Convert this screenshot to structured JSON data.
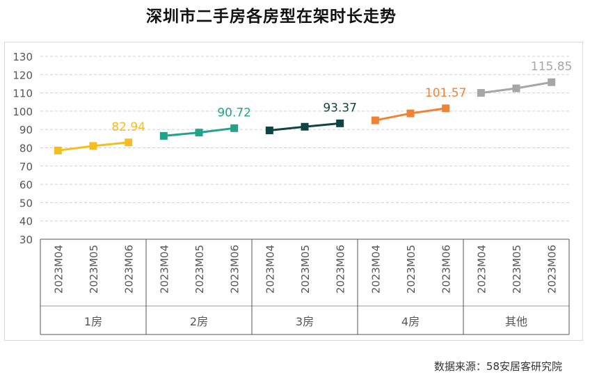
{
  "page": {
    "title": "深圳市二手房各房型在架时长走势",
    "source": "数据来源：58安居客研究院"
  },
  "chart_data": {
    "type": "line",
    "title": "深圳市二手房各房型在架时长走势",
    "xlabel": "",
    "ylabel": "",
    "ylim": [
      30,
      130
    ],
    "yticks": [
      30,
      40,
      50,
      60,
      70,
      80,
      90,
      100,
      110,
      120,
      130
    ],
    "grid": true,
    "groups": [
      {
        "name": "1房",
        "color": "#F5BD1F",
        "categories": [
          "2023M04",
          "2023M05",
          "2023M06"
        ],
        "values": [
          78.5,
          81,
          82.94
        ],
        "end_label": "82.94"
      },
      {
        "name": "2房",
        "color": "#21A38A",
        "categories": [
          "2023M04",
          "2023M05",
          "2023M06"
        ],
        "values": [
          86.5,
          88.3,
          90.72
        ],
        "end_label": "90.72"
      },
      {
        "name": "3房",
        "color": "#0E4444",
        "categories": [
          "2023M04",
          "2023M05",
          "2023M06"
        ],
        "values": [
          89.5,
          91.5,
          93.37
        ],
        "end_label": "93.37"
      },
      {
        "name": "4房",
        "color": "#F08236",
        "categories": [
          "2023M04",
          "2023M05",
          "2023M06"
        ],
        "values": [
          95,
          98.8,
          101.57
        ],
        "end_label": "101.57"
      },
      {
        "name": "其他",
        "color": "#A6A6A6",
        "categories": [
          "2023M04",
          "2023M05",
          "2023M06"
        ],
        "values": [
          110,
          112.5,
          115.85
        ],
        "end_label": "115.85"
      }
    ]
  }
}
